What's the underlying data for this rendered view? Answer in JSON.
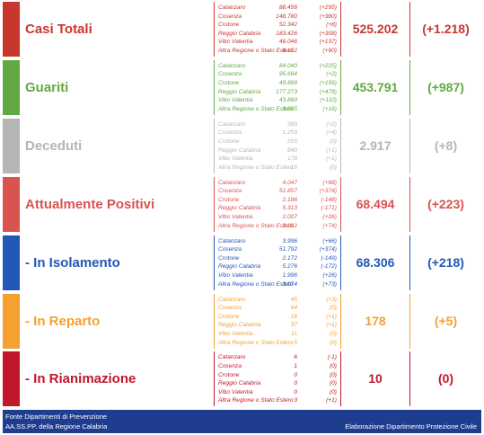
{
  "rows": [
    {
      "label": "Casi Totali",
      "color": "#c8372d",
      "total": "525.202",
      "total_delta": "(+1.218)",
      "provinces": [
        {
          "name": "Catanzaro",
          "value": "88.456",
          "delta": "(+295)"
        },
        {
          "name": "Cosenza",
          "value": "148.780",
          "delta": "(+380)"
        },
        {
          "name": "Crotone",
          "value": "52.342",
          "delta": "(+8)"
        },
        {
          "name": "Reggio Calabria",
          "value": "183.426",
          "delta": "(+308)"
        },
        {
          "name": "Vibo Valentia",
          "value": "46.046",
          "delta": "(+137)"
        },
        {
          "name": "Altra Regione o Stato Estero",
          "value": "6.152",
          "delta": "(+90)"
        }
      ]
    },
    {
      "label": "Guariti",
      "color": "#62a943",
      "total": "453.791",
      "total_delta": "(+987)",
      "provinces": [
        {
          "name": "Catanzaro",
          "value": "84.040",
          "delta": "(+225)"
        },
        {
          "name": "Cosenza",
          "value": "95.664",
          "delta": "(+2)"
        },
        {
          "name": "Crotone",
          "value": "49.899",
          "delta": "(+156)"
        },
        {
          "name": "Reggio Calabria",
          "value": "177.273",
          "delta": "(+478)"
        },
        {
          "name": "Vibo Valentia",
          "value": "43.860",
          "delta": "(+110)"
        },
        {
          "name": "Altra Regione o Stato Estero",
          "value": "3.055",
          "delta": "(+16)"
        }
      ]
    },
    {
      "label": "Deceduti",
      "color": "#b5b5b5",
      "total": "2.917",
      "total_delta": "(+8)",
      "provinces": [
        {
          "name": "Catanzaro",
          "value": "369",
          "delta": "(+2)"
        },
        {
          "name": "Cosenza",
          "value": "1.259",
          "delta": "(+4)"
        },
        {
          "name": "Crotone",
          "value": "255",
          "delta": "(0)"
        },
        {
          "name": "Reggio Calabria",
          "value": "840",
          "delta": "(+1)"
        },
        {
          "name": "Vibo Valentia",
          "value": "178",
          "delta": "(+1)"
        },
        {
          "name": "Altra Regione o Stato Estero",
          "value": "16",
          "delta": "(0)"
        }
      ]
    },
    {
      "label": "Attualmente Positivi",
      "color": "#d9534f",
      "total": "68.494",
      "total_delta": "(+223)",
      "provinces": [
        {
          "name": "Catanzaro",
          "value": "4.047",
          "delta": "(+68)"
        },
        {
          "name": "Cosenza",
          "value": "51.857",
          "delta": "(+374)"
        },
        {
          "name": "Crotone",
          "value": "2.188",
          "delta": "(-148)"
        },
        {
          "name": "Reggio Calabria",
          "value": "5.313",
          "delta": "(-171)"
        },
        {
          "name": "Vibo Valentia",
          "value": "2.007",
          "delta": "(+26)"
        },
        {
          "name": "Altra Regione o Stato Estero",
          "value": "3.082",
          "delta": "(+74)"
        }
      ]
    },
    {
      "label": "- In Isolamento",
      "color": "#2357b8",
      "total": "68.306",
      "total_delta": "(+218)",
      "provinces": [
        {
          "name": "Catanzaro",
          "value": "3.996",
          "delta": "(+66)"
        },
        {
          "name": "Cosenza",
          "value": "51.792",
          "delta": "(+374)"
        },
        {
          "name": "Crotone",
          "value": "2.172",
          "delta": "(-149)"
        },
        {
          "name": "Reggio Calabria",
          "value": "5.276",
          "delta": "(-172)"
        },
        {
          "name": "Vibo Valentia",
          "value": "1.996",
          "delta": "(+26)"
        },
        {
          "name": "Altra Regione o Stato Estero",
          "value": "3.074",
          "delta": "(+73)"
        }
      ]
    },
    {
      "label": "- In Reparto",
      "color": "#f5a031",
      "total": "178",
      "total_delta": "(+5)",
      "provinces": [
        {
          "name": "Catanzaro",
          "value": "45",
          "delta": "(+3)"
        },
        {
          "name": "Cosenza",
          "value": "64",
          "delta": "(0)"
        },
        {
          "name": "Crotone",
          "value": "16",
          "delta": "(+1)"
        },
        {
          "name": "Reggio Calabria",
          "value": "37",
          "delta": "(+1)"
        },
        {
          "name": "Vibo Valentia",
          "value": "11",
          "delta": "(0)"
        },
        {
          "name": "Altra Regione o Stato Estero",
          "value": "5",
          "delta": "(0)"
        }
      ]
    },
    {
      "label": "- In Rianimazione",
      "color": "#c0172b",
      "total": "10",
      "total_delta": "(0)",
      "provinces": [
        {
          "name": "Catanzaro",
          "value": "6",
          "delta": "(-1)"
        },
        {
          "name": "Cosenza",
          "value": "1",
          "delta": "(0)"
        },
        {
          "name": "Crotone",
          "value": "0",
          "delta": "(0)"
        },
        {
          "name": "Reggio Calabria",
          "value": "0",
          "delta": "(0)"
        },
        {
          "name": "Vibo Valentia",
          "value": "0",
          "delta": "(0)"
        },
        {
          "name": "Altra Regione o Stato Estero",
          "value": "3",
          "delta": "(+1)"
        }
      ]
    }
  ],
  "footer": {
    "source_line1": "Fonte Dipartimenti di Prevenzione",
    "source_line2": "AA.SS.PP. della Regione Calabria",
    "credit": "Elaborazione Dipartimento Protezione Civile"
  }
}
